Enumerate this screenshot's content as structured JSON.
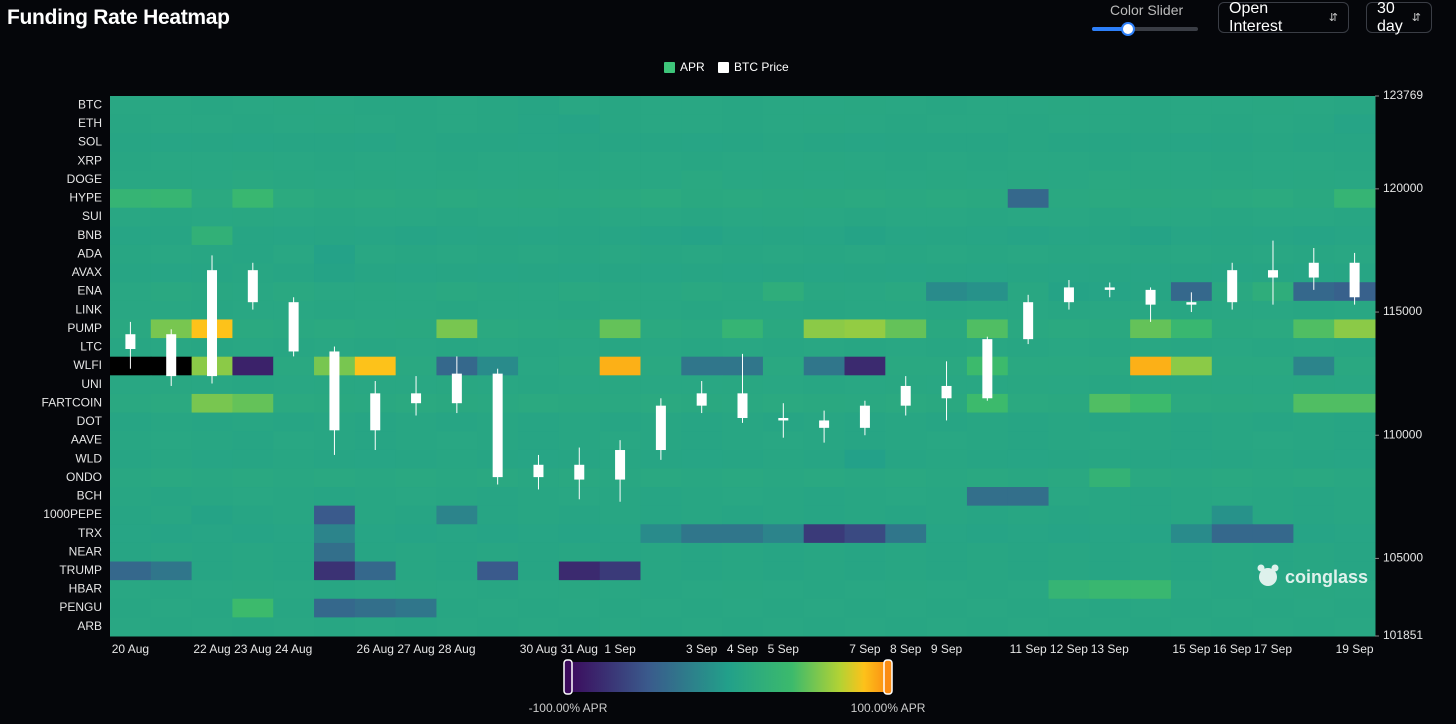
{
  "ui": {
    "title": "Funding Rate Heatmap",
    "slider_label": "Color Slider",
    "metric": "Open Interest",
    "range": "30 day",
    "watermark": "coinglass"
  },
  "chart_data": {
    "type": "heatmap",
    "name": "APR",
    "legend_color": "#3ec57a",
    "missing_color": "#000000",
    "y_categories": [
      "BTC",
      "ETH",
      "SOL",
      "XRP",
      "DOGE",
      "HYPE",
      "SUI",
      "BNB",
      "ADA",
      "AVAX",
      "ENA",
      "LINK",
      "PUMP",
      "LTC",
      "WLFI",
      "UNI",
      "FARTCOIN",
      "DOT",
      "AAVE",
      "WLD",
      "ONDO",
      "BCH",
      "1000PEPE",
      "TRX",
      "NEAR",
      "TRUMP",
      "HBAR",
      "PENGU",
      "ARB"
    ],
    "categories": [
      "20 Aug",
      null,
      "22 Aug",
      "23 Aug",
      "24 Aug",
      null,
      "26 Aug",
      "27 Aug",
      "28 Aug",
      null,
      "30 Aug",
      "31 Aug",
      "1 Sep",
      null,
      "3 Sep",
      "4 Sep",
      "5 Sep",
      null,
      "7 Sep",
      "8 Sep",
      "9 Sep",
      null,
      "11 Sep",
      "12 Sep",
      "13 Sep",
      null,
      "15 Sep",
      "16 Sep",
      "17 Sep",
      null,
      "19 Sep"
    ],
    "values": [
      [
        10,
        10,
        9,
        10,
        11,
        10,
        9,
        9,
        10,
        9,
        8,
        10,
        9,
        10,
        10,
        9,
        10,
        10,
        11,
        10,
        9,
        10,
        10,
        11,
        10,
        9,
        10,
        10,
        11,
        10,
        9
      ],
      [
        9,
        10,
        10,
        9,
        10,
        11,
        10,
        9,
        10,
        9,
        7,
        6,
        9,
        10,
        10,
        9,
        10,
        11,
        10,
        9,
        10,
        10,
        9,
        10,
        10,
        9,
        10,
        9,
        10,
        9,
        6
      ],
      [
        8,
        7,
        8,
        7,
        8,
        8,
        7,
        9,
        8,
        8,
        7,
        8,
        8,
        8,
        7,
        8,
        9,
        8,
        7,
        8,
        8,
        8,
        9,
        8,
        8,
        8,
        7,
        8,
        9,
        8,
        8
      ],
      [
        9,
        10,
        10,
        11,
        10,
        9,
        10,
        10,
        9,
        10,
        10,
        9,
        10,
        10,
        9,
        10,
        10,
        11,
        10,
        9,
        10,
        9,
        10,
        10,
        9,
        10,
        10,
        9,
        10,
        10,
        9
      ],
      [
        10,
        11,
        10,
        12,
        11,
        10,
        11,
        10,
        11,
        10,
        11,
        10,
        11,
        10,
        12,
        10,
        11,
        10,
        11,
        10,
        11,
        10,
        11,
        10,
        12,
        11,
        10,
        11,
        10,
        11,
        10
      ],
      [
        30,
        32,
        14,
        35,
        15,
        13,
        14,
        12,
        14,
        12,
        13,
        12,
        14,
        15,
        13,
        14,
        12,
        13,
        14,
        12,
        14,
        13,
        -40,
        12,
        14,
        13,
        12,
        14,
        15,
        13,
        30
      ],
      [
        10,
        9,
        10,
        11,
        10,
        9,
        10,
        10,
        9,
        10,
        10,
        9,
        10,
        10,
        9,
        10,
        11,
        10,
        9,
        10,
        10,
        9,
        10,
        10,
        9,
        10,
        10,
        9,
        10,
        10,
        9
      ],
      [
        7,
        8,
        25,
        8,
        7,
        8,
        7,
        6,
        7,
        8,
        7,
        8,
        7,
        6,
        4,
        7,
        8,
        7,
        5,
        7,
        8,
        7,
        6,
        7,
        8,
        5,
        7,
        8,
        7,
        6,
        7
      ],
      [
        9,
        10,
        9,
        8,
        10,
        3,
        10,
        9,
        10,
        9,
        10,
        9,
        10,
        9,
        10,
        9,
        10,
        9,
        10,
        9,
        10,
        9,
        10,
        9,
        10,
        9,
        10,
        9,
        10,
        9,
        10
      ],
      [
        8,
        7,
        8,
        9,
        8,
        5,
        8,
        7,
        8,
        7,
        8,
        7,
        8,
        7,
        8,
        7,
        8,
        7,
        8,
        7,
        8,
        7,
        8,
        7,
        8,
        7,
        8,
        7,
        8,
        7,
        8
      ],
      [
        10,
        12,
        11,
        10,
        12,
        10,
        11,
        10,
        12,
        11,
        10,
        12,
        11,
        10,
        12,
        11,
        20,
        11,
        10,
        12,
        -15,
        -10,
        11,
        5,
        6,
        8,
        -40,
        12,
        20,
        -40,
        -45
      ],
      [
        10,
        10,
        9,
        10,
        10,
        9,
        10,
        10,
        9,
        10,
        10,
        9,
        10,
        10,
        9,
        10,
        10,
        9,
        10,
        10,
        9,
        10,
        10,
        9,
        10,
        10,
        9,
        10,
        10,
        9,
        10
      ],
      [
        12,
        55,
        85,
        14,
        12,
        14,
        12,
        13,
        55,
        14,
        12,
        13,
        50,
        14,
        12,
        30,
        13,
        60,
        62,
        50,
        13,
        45,
        12,
        14,
        13,
        50,
        35,
        13,
        14,
        45,
        60
      ],
      [
        9,
        10,
        9,
        10,
        9,
        10,
        9,
        10,
        9,
        10,
        9,
        10,
        9,
        10,
        9,
        10,
        9,
        10,
        9,
        10,
        9,
        10,
        9,
        10,
        9,
        10,
        9,
        10,
        9,
        10,
        9
      ],
      [
        null,
        null,
        60,
        -85,
        12,
        55,
        85,
        12,
        -40,
        -15,
        10,
        12,
        90,
        12,
        -30,
        -30,
        12,
        -30,
        -80,
        12,
        12,
        40,
        12,
        12,
        12,
        90,
        60,
        12,
        12,
        -20,
        12
      ],
      [
        10,
        11,
        10,
        9,
        10,
        11,
        10,
        10,
        11,
        10,
        9,
        10,
        11,
        10,
        10,
        11,
        10,
        9,
        10,
        11,
        10,
        10,
        11,
        10,
        9,
        10,
        11,
        10,
        10,
        11,
        10
      ],
      [
        12,
        14,
        55,
        50,
        14,
        13,
        12,
        14,
        13,
        12,
        14,
        13,
        12,
        14,
        13,
        12,
        14,
        13,
        12,
        14,
        13,
        40,
        14,
        13,
        45,
        40,
        14,
        13,
        12,
        45,
        45
      ],
      [
        8,
        9,
        8,
        9,
        8,
        9,
        8,
        9,
        8,
        9,
        8,
        9,
        8,
        9,
        8,
        9,
        8,
        9,
        8,
        9,
        8,
        9,
        8,
        9,
        8,
        9,
        8,
        9,
        8,
        9,
        8
      ],
      [
        9,
        10,
        9,
        8,
        10,
        9,
        8,
        9,
        10,
        9,
        8,
        9,
        10,
        9,
        8,
        9,
        10,
        9,
        8,
        9,
        10,
        9,
        8,
        9,
        10,
        9,
        8,
        9,
        10,
        9,
        8
      ],
      [
        8,
        9,
        7,
        8,
        9,
        8,
        7,
        8,
        9,
        8,
        7,
        8,
        9,
        8,
        7,
        8,
        9,
        8,
        2,
        8,
        9,
        8,
        7,
        8,
        9,
        8,
        7,
        8,
        9,
        8,
        7
      ],
      [
        11,
        12,
        11,
        12,
        11,
        12,
        11,
        12,
        11,
        12,
        11,
        12,
        11,
        12,
        11,
        12,
        11,
        12,
        11,
        12,
        11,
        12,
        11,
        12,
        28,
        12,
        11,
        12,
        11,
        12,
        11
      ],
      [
        9,
        8,
        9,
        10,
        9,
        8,
        9,
        10,
        9,
        8,
        9,
        10,
        9,
        8,
        9,
        10,
        9,
        8,
        9,
        10,
        9,
        -35,
        -35,
        10,
        9,
        8,
        9,
        10,
        9,
        8,
        9
      ],
      [
        8,
        9,
        5,
        8,
        9,
        -50,
        9,
        8,
        -20,
        8,
        9,
        8,
        9,
        8,
        9,
        8,
        9,
        8,
        9,
        8,
        9,
        8,
        9,
        8,
        9,
        8,
        9,
        -10,
        9,
        8,
        9
      ],
      [
        7,
        6,
        7,
        6,
        7,
        -20,
        7,
        6,
        7,
        6,
        7,
        6,
        7,
        -15,
        -30,
        -30,
        -20,
        -70,
        -60,
        -30,
        7,
        6,
        7,
        6,
        7,
        6,
        -15,
        -40,
        -40,
        6,
        7
      ],
      [
        8,
        9,
        8,
        9,
        8,
        -35,
        8,
        9,
        8,
        9,
        8,
        9,
        8,
        9,
        8,
        9,
        8,
        9,
        8,
        9,
        8,
        9,
        8,
        9,
        8,
        9,
        8,
        9,
        8,
        9,
        8
      ],
      [
        -40,
        -30,
        8,
        9,
        8,
        -75,
        -40,
        9,
        8,
        -50,
        8,
        -80,
        -70,
        9,
        8,
        9,
        8,
        9,
        8,
        9,
        8,
        9,
        8,
        9,
        8,
        9,
        8,
        9,
        8,
        9,
        8
      ],
      [
        10,
        9,
        10,
        11,
        10,
        9,
        10,
        11,
        10,
        9,
        10,
        11,
        10,
        9,
        10,
        11,
        10,
        9,
        10,
        11,
        10,
        9,
        10,
        30,
        35,
        35,
        10,
        9,
        10,
        11,
        10
      ],
      [
        9,
        10,
        9,
        40,
        9,
        -40,
        -35,
        -30,
        9,
        10,
        9,
        10,
        9,
        10,
        9,
        10,
        9,
        10,
        9,
        10,
        9,
        10,
        9,
        10,
        9,
        10,
        9,
        10,
        9,
        10,
        9
      ],
      [
        10,
        9,
        10,
        9,
        10,
        9,
        10,
        9,
        10,
        9,
        10,
        9,
        10,
        9,
        10,
        9,
        10,
        9,
        10,
        9,
        10,
        9,
        10,
        9,
        10,
        9,
        10,
        9,
        10,
        9,
        10
      ]
    ],
    "zlim": [
      -100,
      100
    ],
    "zticks": [
      {
        "value": -100,
        "label": "-100.00% APR"
      },
      {
        "value": 100,
        "label": "100.00% APR"
      }
    ],
    "colorscale": [
      [
        -100,
        "#3b0a5c"
      ],
      [
        -50,
        "#3a5a8c"
      ],
      [
        0,
        "#22a08a"
      ],
      [
        40,
        "#3cba6c"
      ],
      [
        70,
        "#b3d234"
      ],
      [
        85,
        "#fdc21a"
      ],
      [
        100,
        "#fb8c12"
      ]
    ],
    "overlay": {
      "type": "candlestick",
      "name": "BTC Price",
      "color": "#ffffff",
      "axis": "y2",
      "open": [
        113500,
        114100,
        112400,
        116700,
        115400,
        113400,
        110200,
        111700,
        111300,
        112500,
        108300,
        108800,
        108200,
        109400,
        111200,
        111700,
        110700,
        110600,
        110300,
        111200,
        112000,
        111500,
        113900,
        115400,
        116000,
        115900,
        115300,
        115400,
        116700,
        116400,
        117000
      ],
      "high": [
        114600,
        114300,
        117300,
        117000,
        115600,
        113600,
        112200,
        112400,
        113200,
        112700,
        109200,
        109500,
        109800,
        111500,
        112200,
        113300,
        111300,
        111000,
        111400,
        112400,
        113000,
        114000,
        115700,
        116300,
        116200,
        116000,
        115800,
        117000,
        117900,
        117600,
        117400
      ],
      "low": [
        112700,
        112000,
        112100,
        115100,
        113200,
        109200,
        109400,
        110800,
        110900,
        108000,
        107800,
        107400,
        107300,
        109000,
        110900,
        110500,
        109900,
        109700,
        110000,
        110800,
        110600,
        111400,
        113700,
        115100,
        115600,
        114600,
        115000,
        115100,
        115300,
        115900,
        115300
      ],
      "close": [
        114100,
        112400,
        116700,
        115400,
        113400,
        110200,
        111700,
        111300,
        112500,
        108300,
        108800,
        108200,
        109400,
        111200,
        111700,
        110700,
        110600,
        110300,
        111200,
        112000,
        111500,
        113900,
        115400,
        116000,
        115900,
        115300,
        115400,
        116700,
        116400,
        117000,
        115600
      ]
    },
    "y2lim": [
      101851,
      123769
    ],
    "y2ticks": [
      101851,
      105000,
      110000,
      115000,
      120000,
      123769
    ]
  }
}
